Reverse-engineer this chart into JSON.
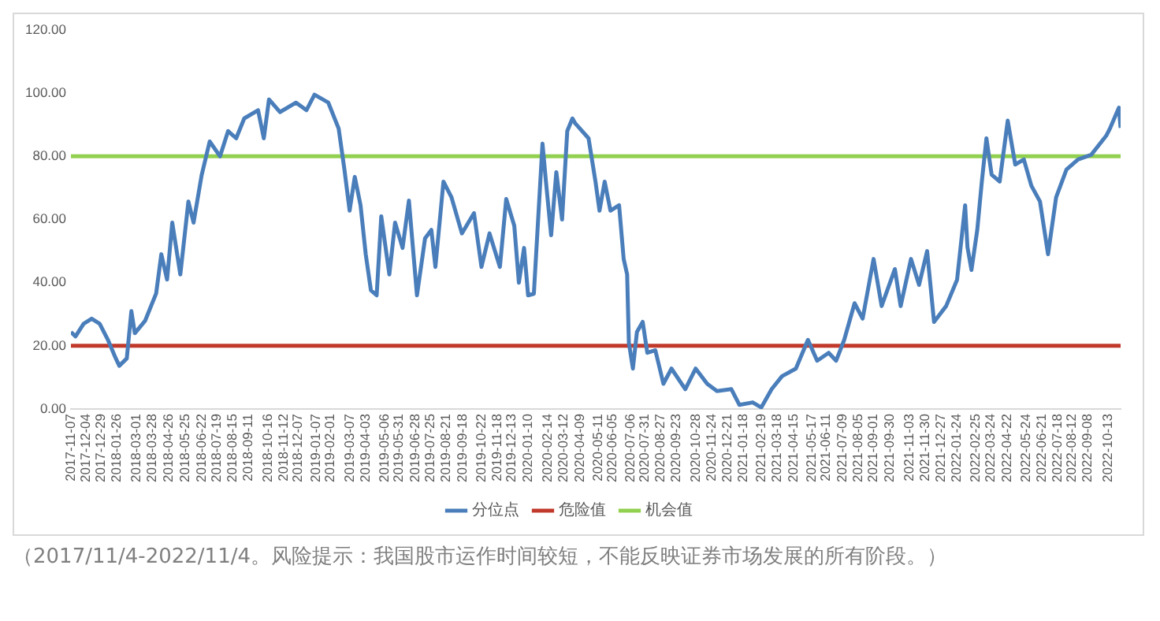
{
  "chart_data": {
    "type": "line",
    "x": [
      "2017-11-07",
      "2017-11-15",
      "2017-11-29",
      "2017-12-13",
      "2017-12-27",
      "2018-01-10",
      "2018-01-24",
      "2018-01-30",
      "2018-02-12",
      "2018-02-20",
      "2018-02-26",
      "2018-03-16",
      "2018-04-04",
      "2018-04-13",
      "2018-04-23",
      "2018-05-02",
      "2018-05-16",
      "2018-05-30",
      "2018-06-08",
      "2018-06-22",
      "2018-07-06",
      "2018-07-24",
      "2018-08-07",
      "2018-08-21",
      "2018-09-04",
      "2018-09-28",
      "2018-10-08",
      "2018-10-17",
      "2018-11-05",
      "2018-12-03",
      "2018-12-21",
      "2019-01-04",
      "2019-01-28",
      "2019-02-15",
      "2019-02-25",
      "2019-03-06",
      "2019-03-15",
      "2019-03-25",
      "2019-04-03",
      "2019-04-12",
      "2019-04-22",
      "2019-04-30",
      "2019-05-14",
      "2019-05-24",
      "2019-06-06",
      "2019-06-17",
      "2019-07-01",
      "2019-07-15",
      "2019-07-26",
      "2019-08-02",
      "2019-08-16",
      "2019-08-30",
      "2019-09-17",
      "2019-10-08",
      "2019-10-21",
      "2019-11-04",
      "2019-11-22",
      "2019-12-03",
      "2019-12-17",
      "2019-12-25",
      "2020-01-03",
      "2020-01-10",
      "2020-01-20",
      "2020-02-04",
      "2020-02-10",
      "2020-02-19",
      "2020-02-28",
      "2020-03-09",
      "2020-03-18",
      "2020-03-27",
      "2020-04-01",
      "2020-04-24",
      "2020-05-06",
      "2020-05-13",
      "2020-05-22",
      "2020-06-01",
      "2020-06-16",
      "2020-06-24",
      "2020-06-30",
      "2020-07-03",
      "2020-07-10",
      "2020-07-17",
      "2020-07-27",
      "2020-08-04",
      "2020-08-18",
      "2020-09-01",
      "2020-09-15",
      "2020-10-09",
      "2020-10-27",
      "2020-11-16",
      "2020-12-03",
      "2020-12-28",
      "2021-01-11",
      "2021-02-03",
      "2021-02-18",
      "2021-03-08",
      "2021-03-26",
      "2021-04-19",
      "2021-05-10",
      "2021-05-26",
      "2021-06-15",
      "2021-06-28",
      "2021-07-12",
      "2021-07-30",
      "2021-08-13",
      "2021-09-01",
      "2021-09-15",
      "2021-10-08",
      "2021-10-18",
      "2021-11-05",
      "2021-11-19",
      "2021-12-03",
      "2021-12-15",
      "2022-01-05",
      "2022-01-24",
      "2022-02-07",
      "2022-02-11",
      "2022-02-18",
      "2022-02-28",
      "2022-03-08",
      "2022-03-16",
      "2022-03-25",
      "2022-04-08",
      "2022-04-22",
      "2022-05-05",
      "2022-05-20",
      "2022-06-02",
      "2022-06-17",
      "2022-07-01",
      "2022-07-15",
      "2022-08-02",
      "2022-08-22",
      "2022-09-14",
      "2022-10-10",
      "2022-10-17",
      "2022-11-01",
      "2022-11-04"
    ],
    "series": [
      {
        "name": "分位点",
        "color": "#4a7ebb",
        "values": [
          24.4,
          23,
          27,
          28.6,
          27,
          22,
          16,
          13.7,
          16,
          31,
          24,
          28,
          36.6,
          49,
          41,
          59,
          42.6,
          65.7,
          59,
          74,
          84.7,
          80,
          88,
          85.7,
          92,
          94.6,
          85.7,
          98,
          94,
          97,
          94.6,
          99.5,
          97,
          88.8,
          75.8,
          62.8,
          73.5,
          64.5,
          49,
          37.6,
          36,
          61,
          42.6,
          59,
          51,
          66,
          36,
          54,
          56.7,
          45,
          72,
          67,
          55.6,
          62,
          45,
          55.6,
          45,
          66.5,
          58,
          40,
          51,
          36,
          36.5,
          84,
          72,
          55,
          75,
          60,
          88,
          92,
          90.4,
          85.7,
          72,
          62.8,
          72,
          62.8,
          64.5,
          47.5,
          42.6,
          21,
          12.8,
          24.4,
          27.6,
          17.8,
          18.6,
          8,
          12.8,
          6.3,
          12.8,
          8,
          5.7,
          6.3,
          1.3,
          2.1,
          0.5,
          6.3,
          10.4,
          12.8,
          21.9,
          15.3,
          17.8,
          15.3,
          21.9,
          33.5,
          28.6,
          47.5,
          32.6,
          44.3,
          32.6,
          47.5,
          39.3,
          50,
          27.6,
          32.6,
          40.9,
          64.5,
          51.3,
          44,
          56.6,
          72,
          85.7,
          74.2,
          72,
          91.3,
          77.4,
          79,
          70.7,
          65.7,
          49,
          67,
          75.8,
          79,
          80.5,
          86.5,
          89,
          95.4,
          89
        ]
      }
    ],
    "ref_lines": [
      {
        "axis": "y",
        "value": 20,
        "label": "危险值",
        "color": "#c0392b"
      },
      {
        "axis": "y",
        "value": 80,
        "label": "机会值",
        "color": "#92d050"
      }
    ],
    "xlim": [
      "2017-11-07",
      "2022-11-04"
    ],
    "xticks": [
      "2017-11-07",
      "2017-12-04",
      "2017-12-29",
      "2018-01-26",
      "2018-03-01",
      "2018-03-28",
      "2018-04-26",
      "2018-05-25",
      "2018-06-22",
      "2018-07-19",
      "2018-08-15",
      "2018-09-11",
      "2018-10-16",
      "2018-11-12",
      "2018-12-07",
      "2019-01-07",
      "2019-02-01",
      "2019-03-07",
      "2019-04-03",
      "2019-05-06",
      "2019-05-31",
      "2019-06-28",
      "2019-07-25",
      "2019-08-21",
      "2019-09-18",
      "2019-10-22",
      "2019-11-18",
      "2019-12-13",
      "2020-01-10",
      "2020-02-14",
      "2020-03-12",
      "2020-04-09",
      "2020-05-11",
      "2020-06-05",
      "2020-07-06",
      "2020-07-31",
      "2020-08-27",
      "2020-09-23",
      "2020-10-28",
      "2020-11-24",
      "2020-12-21",
      "2021-01-18",
      "2021-02-19",
      "2021-03-18",
      "2021-04-15",
      "2021-05-17",
      "2021-06-11",
      "2021-07-09",
      "2021-08-05",
      "2021-09-01",
      "2021-09-30",
      "2021-11-03",
      "2021-11-30",
      "2021-12-27",
      "2022-01-24",
      "2022-02-25",
      "2022-03-24",
      "2022-04-22",
      "2022-05-24",
      "2022-06-21",
      "2022-07-18",
      "2022-08-12",
      "2022-09-08",
      "2022-10-13"
    ],
    "ylim": [
      0,
      120
    ],
    "yticks": [
      {
        "value": 0,
        "label": "0.00"
      },
      {
        "value": 20,
        "label": "20.00"
      },
      {
        "value": 40,
        "label": "40.00"
      },
      {
        "value": 60,
        "label": "60.00"
      },
      {
        "value": 80,
        "label": "80.00"
      },
      {
        "value": 100,
        "label": "100.00"
      },
      {
        "value": 120,
        "label": "120.00"
      }
    ],
    "grid": false,
    "legend": "bottom",
    "marker": "none",
    "line_style": "solid",
    "annotations": [
      "（2017/11/4-2022/11/4。风险提示：我国股市运作时间较短，不能反映证券市场发展的所有阶段。）"
    ]
  }
}
